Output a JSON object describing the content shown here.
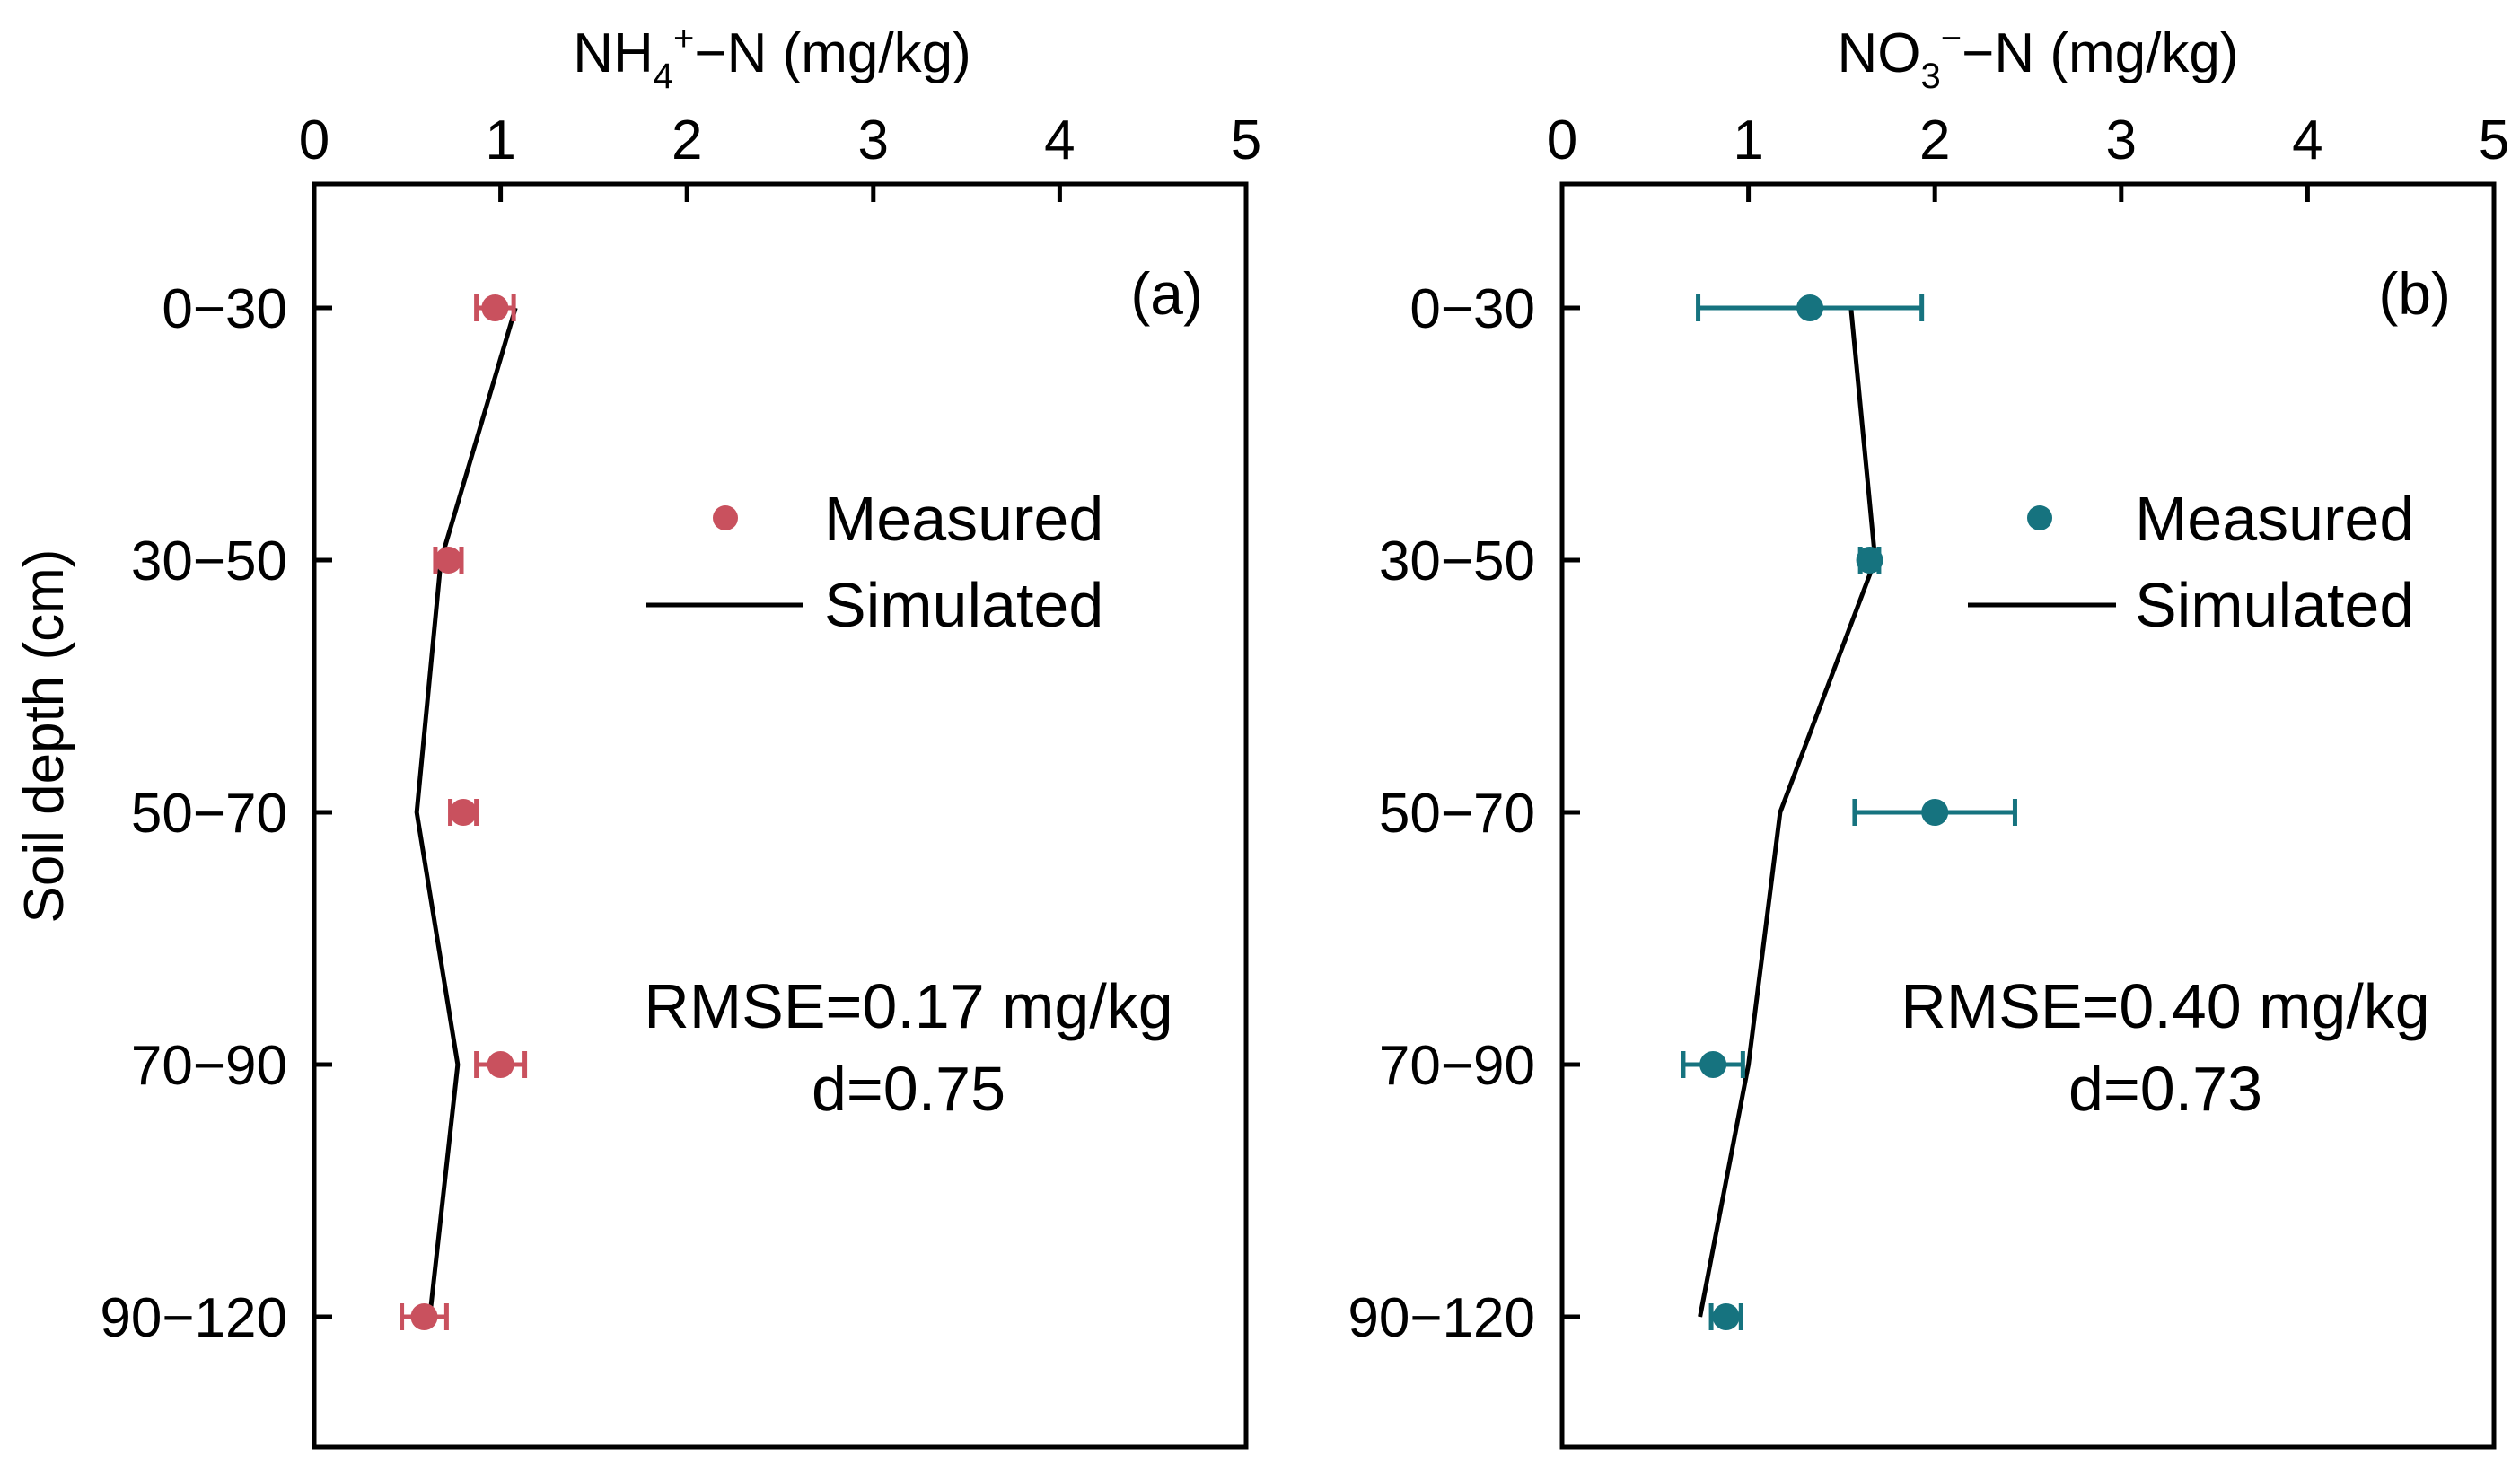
{
  "chart_data": [
    {
      "type": "scatter",
      "panel_label": "(a)",
      "xlabel": {
        "main": "NH",
        "sub": "4",
        "sup": "+",
        "rest": "−N (mg/kg)"
      },
      "ylabel": "Soil depth (cm)",
      "xlim": [
        0,
        5
      ],
      "xticks": [
        "0",
        "1",
        "2",
        "3",
        "4",
        "5"
      ],
      "categories": [
        "0−30",
        "30−50",
        "50−70",
        "70−90",
        "90−120"
      ],
      "measured": {
        "name": "Measured",
        "color": "#c9515e",
        "values": [
          0.97,
          0.72,
          0.8,
          1.0,
          0.59
        ],
        "errors": [
          0.1,
          0.07,
          0.07,
          0.13,
          0.12
        ]
      },
      "simulated": {
        "name": "Simulated",
        "color": "#000000",
        "values": [
          1.08,
          0.68,
          0.55,
          0.77,
          0.62
        ]
      },
      "stats": {
        "rmse": "RMSE=0.17 mg/kg",
        "d": "d=0.75"
      }
    },
    {
      "type": "scatter",
      "panel_label": "(b)",
      "xlabel": {
        "main": "NO",
        "sub": "3",
        "sup": "−",
        "rest": "−N (mg/kg)"
      },
      "ylabel": "",
      "xlim": [
        0,
        5
      ],
      "xticks": [
        "0",
        "1",
        "2",
        "3",
        "4",
        "5"
      ],
      "categories": [
        "0−30",
        "30−50",
        "50−70",
        "70−90",
        "90−120"
      ],
      "measured": {
        "name": "Measured",
        "color": "#16737f",
        "values": [
          1.33,
          1.65,
          2.0,
          0.81,
          0.88
        ],
        "errors": [
          0.6,
          0.05,
          0.43,
          0.16,
          0.08
        ]
      },
      "simulated": {
        "name": "Simulated",
        "color": "#000000",
        "values": [
          1.55,
          1.68,
          1.17,
          1.0,
          0.74
        ]
      },
      "stats": {
        "rmse": "RMSE=0.40 mg/kg",
        "d": "d=0.73"
      }
    }
  ]
}
